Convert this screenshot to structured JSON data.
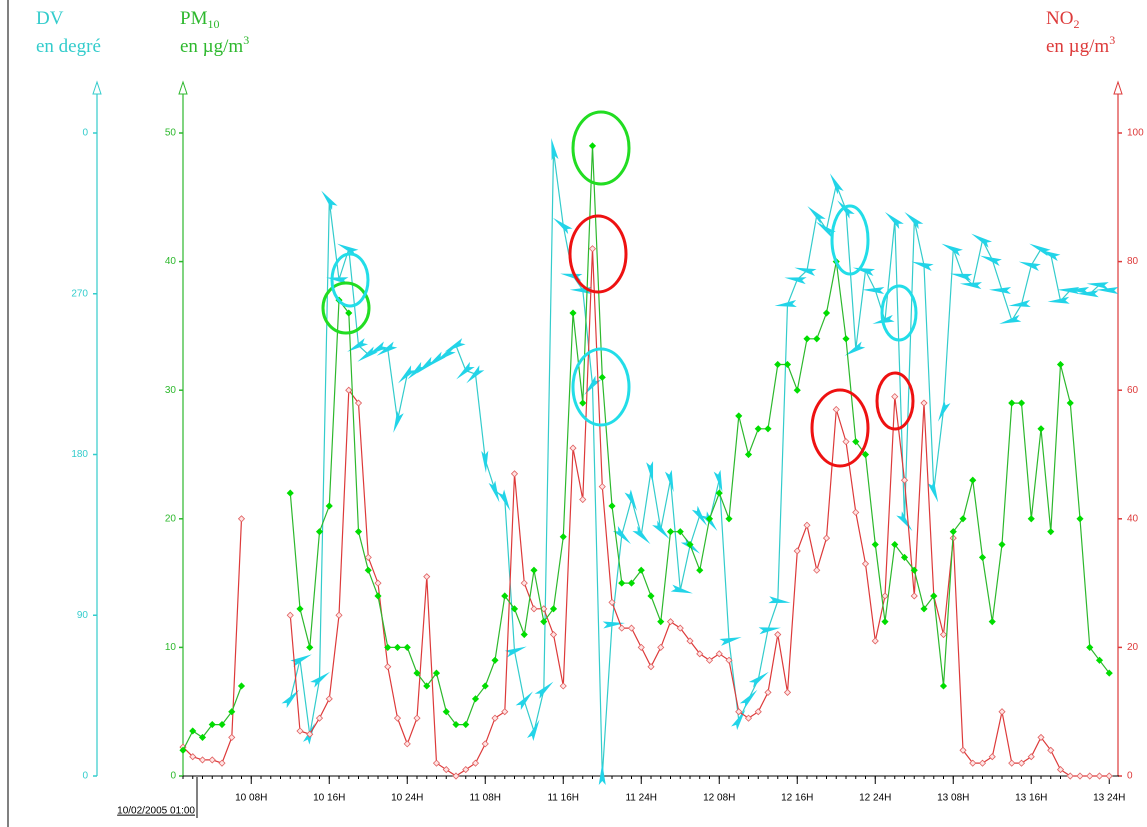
{
  "chart_data": {
    "type": "line",
    "x": [
      0,
      1,
      2,
      3,
      4,
      5,
      6,
      7,
      8,
      9,
      10,
      11,
      12,
      13,
      14,
      15,
      16,
      17,
      18,
      19,
      20,
      21,
      22,
      23,
      24,
      25,
      26,
      27,
      28,
      29,
      30,
      31,
      32,
      33,
      34,
      35,
      36,
      37,
      38,
      39,
      40,
      41,
      42,
      43,
      44,
      45,
      46,
      47,
      48,
      49,
      50,
      51,
      52,
      53,
      54,
      55,
      56,
      57,
      58,
      59,
      60,
      61,
      62,
      63,
      64,
      65,
      66,
      67,
      68,
      69,
      70,
      71,
      72,
      73,
      74,
      75,
      76,
      77,
      78,
      79,
      80,
      81,
      82,
      83,
      84,
      85,
      86,
      87,
      88,
      89,
      90,
      91,
      92,
      93,
      94,
      95
    ],
    "xlim": [
      0,
      96
    ],
    "xticks": [
      {
        "value": 7,
        "label": "10 08H"
      },
      {
        "value": 15,
        "label": "10 16H"
      },
      {
        "value": 23,
        "label": "10 24H"
      },
      {
        "value": 31,
        "label": "11 08H"
      },
      {
        "value": 39,
        "label": "11 16H"
      },
      {
        "value": 47,
        "label": "11 24H"
      },
      {
        "value": 55,
        "label": "12 08H"
      },
      {
        "value": 63,
        "label": "12 16H"
      },
      {
        "value": 71,
        "label": "12 24H"
      },
      {
        "value": 79,
        "label": "13 08H"
      },
      {
        "value": 87,
        "label": "13 16H"
      },
      {
        "value": 95,
        "label": "13 24H"
      }
    ],
    "start_label": "10/02/2005 01:00",
    "ylim": [
      0,
      50
    ],
    "yticks": [
      0,
      10,
      20,
      30,
      40,
      50
    ],
    "y2lim": [
      0,
      100
    ],
    "y2ticks": [
      0,
      20,
      40,
      60,
      80,
      100
    ],
    "y3lim": [
      0,
      360
    ],
    "y3ticks": [
      0,
      90,
      180,
      270,
      {
        "value": 360,
        "label": "0"
      }
    ],
    "series": [
      {
        "name": "PM",
        "axis": "y",
        "color": "#2db82d",
        "marker_color": "#00dd00",
        "marker": "diamond-filled",
        "axis_title": {
          "name": "PM",
          "name_sub": "10",
          "unit": "en µg/m",
          "unit_sup": "3"
        },
        "values": [
          2,
          3.5,
          3,
          4,
          4,
          5,
          7,
          null,
          null,
          null,
          null,
          22,
          13,
          10,
          19,
          21,
          37,
          36,
          19,
          16,
          14,
          10,
          10,
          10,
          8,
          7,
          8,
          5,
          4,
          4,
          6,
          7,
          9,
          14,
          13,
          11,
          16,
          12,
          13,
          18.6,
          36,
          29,
          49,
          31,
          21,
          15,
          15,
          16,
          14,
          12,
          19,
          19,
          18,
          16,
          20,
          22,
          20,
          28,
          25,
          27,
          27,
          32,
          32,
          30,
          34,
          34,
          36,
          40,
          34,
          26,
          25,
          18,
          12,
          18,
          17,
          16,
          13,
          14,
          7,
          19,
          20,
          23,
          17,
          12,
          18,
          29,
          29,
          20,
          27,
          19,
          32,
          29,
          20,
          10,
          9,
          8
        ]
      },
      {
        "name": "NO",
        "axis": "y2",
        "color": "#dd3a3a",
        "marker_color": "#e06060",
        "marker": "diamond-open",
        "axis_title": {
          "name": "NO",
          "name_sub": "2",
          "unit": "en µg/m",
          "unit_sup": "3"
        },
        "values": [
          4.5,
          3,
          2.5,
          2.5,
          2,
          6,
          40,
          null,
          null,
          null,
          null,
          25,
          7,
          6.5,
          9,
          12,
          25,
          60,
          58,
          34,
          30,
          17,
          9,
          5,
          9,
          31,
          2,
          1,
          0,
          1,
          2,
          5,
          9,
          10,
          47,
          30,
          26,
          26,
          22,
          14,
          51,
          43,
          82,
          45,
          27,
          23,
          23,
          20,
          17,
          20,
          24,
          23,
          21,
          19,
          18,
          19,
          18,
          10,
          9,
          10,
          13,
          22,
          13,
          35,
          39,
          32,
          37,
          57,
          52,
          41,
          33,
          21,
          28,
          59,
          46,
          28,
          58,
          28,
          22,
          37,
          4,
          2,
          2,
          3,
          10,
          2,
          2,
          3,
          6,
          4,
          1,
          0,
          0,
          0,
          0,
          0
        ]
      },
      {
        "name": "DV",
        "axis": "y3",
        "color": "#33cccc",
        "marker_color": "#22d4e8",
        "marker": "arrow",
        "axis_title": {
          "name": "DV",
          "unit": "en degré"
        },
        "values": [
          null,
          null,
          null,
          null,
          null,
          null,
          null,
          null,
          null,
          null,
          null,
          43,
          65,
          23,
          54,
          322,
          278,
          295,
          241,
          236,
          239,
          239,
          199,
          225,
          227,
          230,
          233,
          236,
          241,
          227,
          225,
          177,
          160,
          155,
          70,
          42,
          25,
          48,
          350,
          308,
          280,
          272,
          219,
          0,
          85,
          135,
          155,
          135,
          171,
          138,
          166,
          104,
          129,
          146,
          143,
          166,
          76,
          31,
          43,
          54,
          82,
          98,
          264,
          278,
          283,
          314,
          306,
          331,
          317,
          239,
          283,
          272,
          255,
          311,
          143,
          311,
          286,
          160,
          205,
          295,
          280,
          275,
          300,
          289,
          272,
          255,
          264,
          286,
          295,
          292,
          266,
          272,
          272,
          270,
          275,
          272
        ]
      }
    ]
  }
}
